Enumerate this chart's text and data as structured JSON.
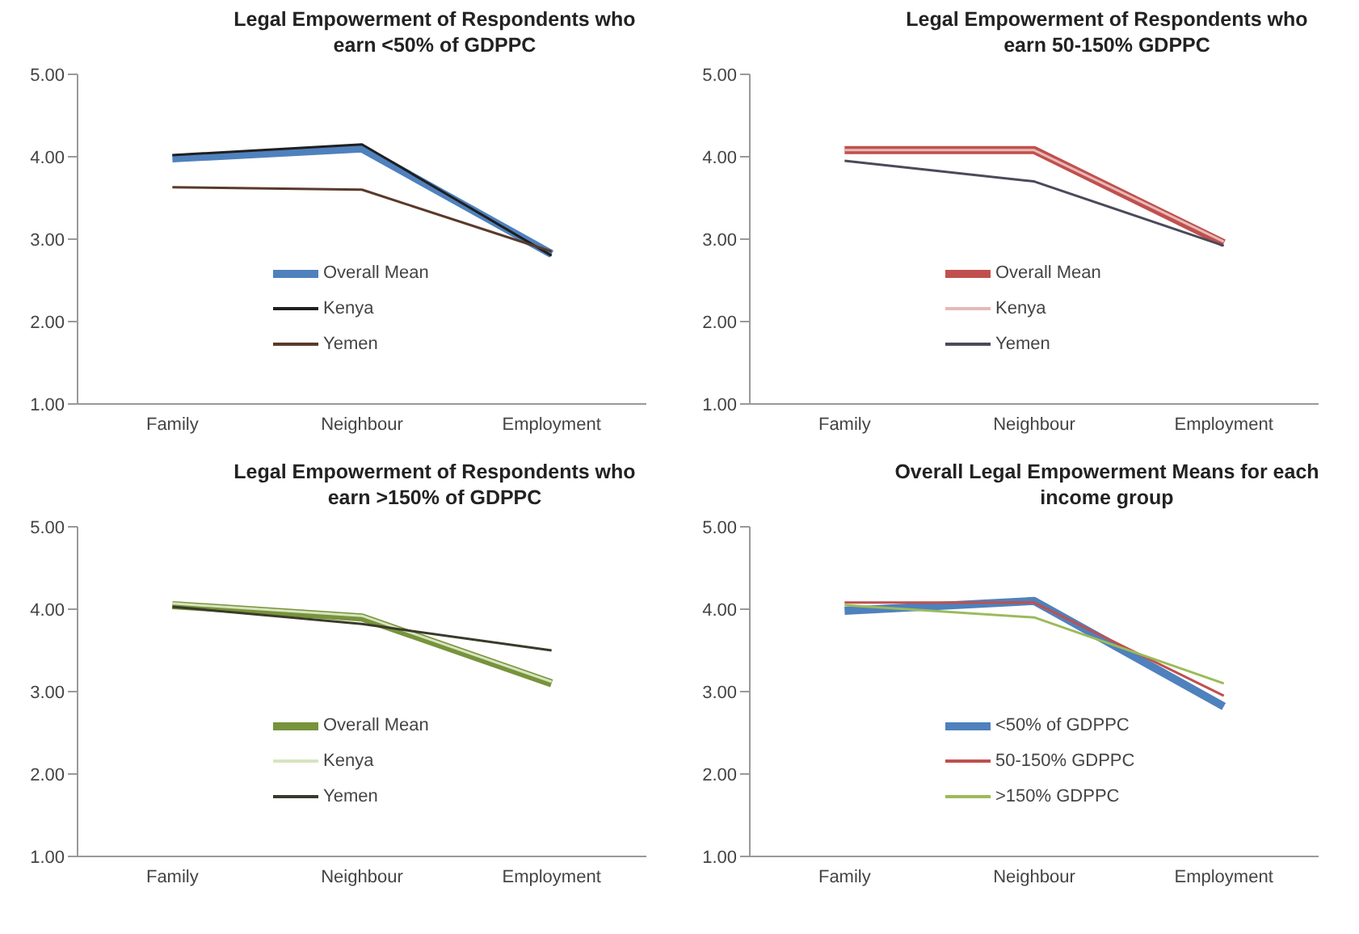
{
  "chart_data": [
    {
      "type": "line",
      "title": "Legal Empowerment of Respondents who earn <50% of GDPPC",
      "categories": [
        "Family",
        "Neighbour",
        "Employment"
      ],
      "series": [
        {
          "name": "Overall Mean",
          "color": "#4f81bd",
          "values": [
            3.98,
            4.1,
            2.82
          ]
        },
        {
          "name": "Kenya",
          "color": "#1f1f1f",
          "values": [
            4.02,
            4.15,
            2.8
          ]
        },
        {
          "name": "Yemen",
          "color": "#5a3a2a",
          "values": [
            3.63,
            3.6,
            2.85
          ]
        }
      ],
      "ylim": [
        1,
        5
      ],
      "yticks": [
        {
          "value": 1,
          "label": "1.00"
        },
        {
          "value": 2,
          "label": "2.00"
        },
        {
          "value": 3,
          "label": "3.00"
        },
        {
          "value": 4,
          "label": "4.00"
        },
        {
          "value": 5,
          "label": "5.00"
        }
      ],
      "grid": false,
      "legend": "bottom",
      "marker": "none",
      "line_style": "solid"
    },
    {
      "type": "line",
      "title": "Legal Empowerment of Respondents who earn 50-150% GDPPC",
      "categories": [
        "Family",
        "Neighbour",
        "Employment"
      ],
      "series": [
        {
          "name": "Overall Mean",
          "color": "#c0504d",
          "values": [
            4.08,
            4.08,
            2.95
          ]
        },
        {
          "name": "Kenya",
          "color": "#e6b9b8",
          "values": [
            4.08,
            4.08,
            2.97
          ]
        },
        {
          "name": "Yemen",
          "color": "#4a4a5a",
          "values": [
            3.95,
            3.7,
            2.92
          ]
        }
      ],
      "ylim": [
        1,
        5
      ],
      "yticks": [
        {
          "value": 1,
          "label": "1.00"
        },
        {
          "value": 2,
          "label": "2.00"
        },
        {
          "value": 3,
          "label": "3.00"
        },
        {
          "value": 4,
          "label": "4.00"
        },
        {
          "value": 5,
          "label": "5.00"
        }
      ],
      "grid": false,
      "legend": "bottom",
      "marker": "none",
      "line_style": "solid"
    },
    {
      "type": "line",
      "title": "Legal Empowerment of Respondents who earn >150% of GDPPC",
      "categories": [
        "Family",
        "Neighbour",
        "Employment"
      ],
      "series": [
        {
          "name": "Overall Mean",
          "color": "#77933c",
          "values": [
            4.05,
            3.9,
            3.1
          ]
        },
        {
          "name": "Kenya",
          "color": "#d7e4bd",
          "values": [
            4.07,
            3.92,
            3.12
          ]
        },
        {
          "name": "Yemen",
          "color": "#3a3a2a",
          "values": [
            4.03,
            3.82,
            3.5
          ]
        }
      ],
      "ylim": [
        1,
        5
      ],
      "yticks": [
        {
          "value": 1,
          "label": "1.00"
        },
        {
          "value": 2,
          "label": "2.00"
        },
        {
          "value": 3,
          "label": "3.00"
        },
        {
          "value": 4,
          "label": "4.00"
        },
        {
          "value": 5,
          "label": "5.00"
        }
      ],
      "grid": false,
      "legend": "bottom",
      "marker": "none",
      "line_style": "solid"
    },
    {
      "type": "line",
      "title": "Overall Legal Empowerment Means for each income group",
      "categories": [
        "Family",
        "Neighbour",
        "Employment"
      ],
      "series": [
        {
          "name": "<50% of GDPPC",
          "color": "#4f81bd",
          "values": [
            3.98,
            4.1,
            2.82
          ]
        },
        {
          "name": "50-150% GDPPC",
          "color": "#c0504d",
          "values": [
            4.08,
            4.08,
            2.95
          ]
        },
        {
          "name": ">150% GDPPC",
          "color": "#9bbb59",
          "values": [
            4.05,
            3.9,
            3.1
          ]
        }
      ],
      "ylim": [
        1,
        5
      ],
      "yticks": [
        {
          "value": 1,
          "label": "1.00"
        },
        {
          "value": 2,
          "label": "2.00"
        },
        {
          "value": 3,
          "label": "3.00"
        },
        {
          "value": 4,
          "label": "4.00"
        },
        {
          "value": 5,
          "label": "5.00"
        }
      ],
      "grid": false,
      "legend": "bottom",
      "marker": "none",
      "line_style": "solid"
    }
  ]
}
